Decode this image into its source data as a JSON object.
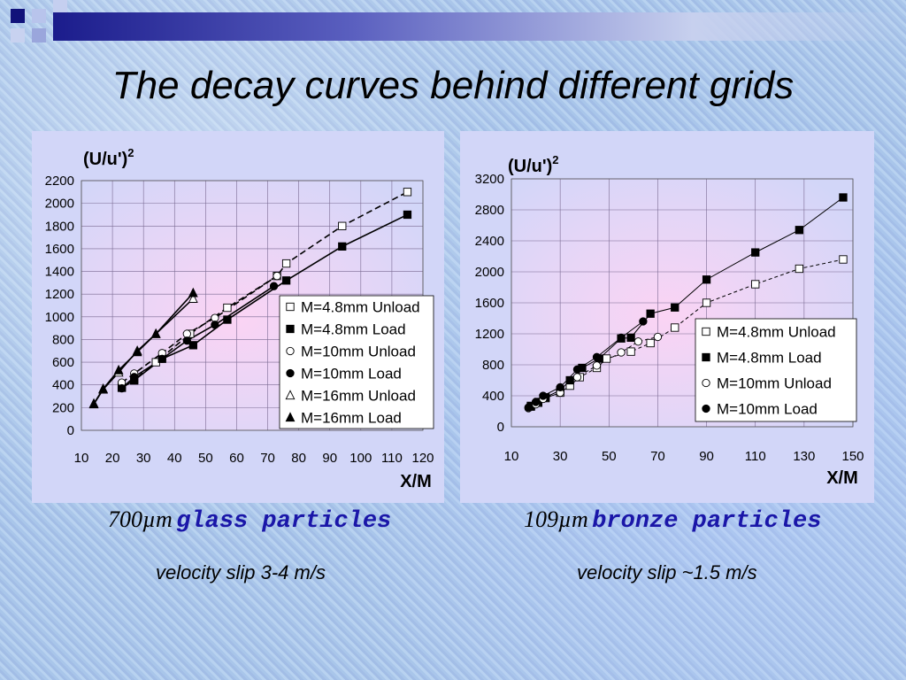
{
  "title": "The decay curves behind different grids",
  "charts": [
    {
      "type": "scatter",
      "ylabel_base": "(U/u')",
      "ylabel_exp": "2",
      "xlabel": "X/M",
      "xlim": [
        10,
        120
      ],
      "ylim": [
        0,
        2200
      ],
      "xticks": [
        10,
        20,
        30,
        40,
        50,
        60,
        70,
        80,
        90,
        100,
        110,
        120
      ],
      "yticks": [
        0,
        200,
        400,
        600,
        800,
        1000,
        1200,
        1400,
        1600,
        1800,
        2000,
        2200
      ],
      "grid": true,
      "legend_position": "lower-right",
      "series": [
        {
          "name": "M=4.8mm Unload",
          "marker": "open-square",
          "line": "dashed",
          "x": [
            23,
            27,
            34,
            45,
            57,
            73,
            76,
            94,
            115
          ],
          "y": [
            375,
            445,
            600,
            850,
            1080,
            1360,
            1470,
            1800,
            2100
          ]
        },
        {
          "name": "M=4.8mm Load",
          "marker": "filled-square",
          "line": "solid",
          "x": [
            23,
            27,
            36,
            46,
            57,
            76,
            94,
            115
          ],
          "y": [
            375,
            440,
            630,
            750,
            975,
            1320,
            1620,
            1900
          ]
        },
        {
          "name": "M=10mm  Unload",
          "marker": "open-circle",
          "line": "dashed",
          "x": [
            23,
            27,
            36,
            44,
            53,
            73
          ],
          "y": [
            420,
            500,
            680,
            850,
            990,
            1360
          ]
        },
        {
          "name": "M=10mm Load",
          "marker": "filled-circle",
          "line": "solid",
          "x": [
            23,
            27,
            36,
            44,
            53,
            72
          ],
          "y": [
            370,
            470,
            630,
            790,
            930,
            1270
          ]
        },
        {
          "name": "M=16mm Unload",
          "marker": "open-triangle",
          "line": "solid",
          "x": [
            14,
            17,
            22,
            28,
            34,
            46
          ],
          "y": [
            230,
            360,
            510,
            700,
            850,
            1160
          ]
        },
        {
          "name": "M=16mm Load",
          "marker": "filled-triangle",
          "line": "solid",
          "x": [
            14,
            17,
            22,
            28,
            34,
            46
          ],
          "y": [
            235,
            365,
            530,
            690,
            850,
            1210
          ]
        }
      ]
    },
    {
      "type": "scatter",
      "ylabel_base": "(U/u')",
      "ylabel_exp": "2",
      "xlabel": "X/M",
      "xlim": [
        10,
        150
      ],
      "ylim": [
        0,
        3200
      ],
      "xticks": [
        10,
        30,
        50,
        70,
        90,
        110,
        130,
        150
      ],
      "yticks": [
        0,
        400,
        800,
        1200,
        1600,
        2000,
        2400,
        2800,
        3200
      ],
      "grid": true,
      "legend_position": "lower-right",
      "series": [
        {
          "name": "M=4.8mm Unload",
          "marker": "open-square",
          "line": "dashed",
          "x": [
            18,
            21,
            24,
            30,
            34,
            38,
            45,
            49,
            59,
            67,
            77,
            90,
            110,
            128,
            146
          ],
          "y": [
            260,
            310,
            370,
            440,
            530,
            640,
            760,
            880,
            970,
            1080,
            1280,
            1600,
            1840,
            2040,
            2160
          ]
        },
        {
          "name": "M=4.8mm Load",
          "marker": "filled-square",
          "line": "solid",
          "x": [
            18,
            21,
            24,
            30,
            34,
            39,
            46,
            55,
            59,
            67,
            77,
            90,
            110,
            128,
            146
          ],
          "y": [
            270,
            320,
            380,
            470,
            600,
            760,
            880,
            1140,
            1150,
            1460,
            1540,
            1900,
            2250,
            2540,
            2960
          ]
        },
        {
          "name": "M=10mm Unload",
          "marker": "open-circle",
          "line": "dashed",
          "x": [
            17,
            20,
            23,
            30,
            37,
            45,
            55,
            62,
            70
          ],
          "y": [
            240,
            290,
            360,
            440,
            640,
            790,
            960,
            1100,
            1160
          ]
        },
        {
          "name": "M=10mm Load",
          "marker": "filled-circle",
          "line": "solid",
          "x": [
            17,
            20,
            23,
            30,
            37,
            45,
            55,
            64
          ],
          "y": [
            250,
            320,
            400,
            510,
            740,
            900,
            1150,
            1360
          ]
        }
      ]
    }
  ],
  "captions": [
    {
      "size": "700µm",
      "material": "glass particles",
      "slip": "velocity slip 3-4 m/s"
    },
    {
      "size": "109µm",
      "material": "bronze particles",
      "slip": "velocity slip ~1.5 m/s"
    }
  ],
  "colors": {
    "accent_blue": "#1a16a8",
    "title_bar_dark": "#1b1c8c",
    "plot_bg": "#d2d6f8",
    "grid_pink": "#e9c6ef"
  }
}
